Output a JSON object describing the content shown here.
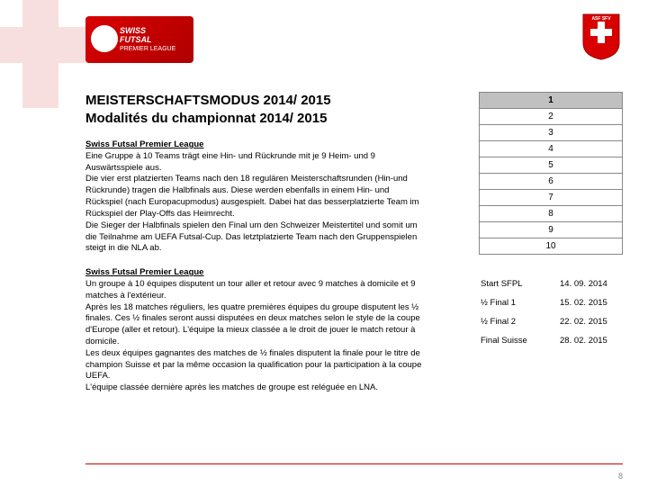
{
  "logo": {
    "line1": "SWISS",
    "line2": "FUTSAL",
    "sub": "PREMIER LEAGUE"
  },
  "title": {
    "de": "MEISTERSCHAFTSMODUS 2014/ 2015",
    "fr": "Modalités du championnat 2014/ 2015"
  },
  "section_de": {
    "heading": "Swiss Futsal Premier League",
    "p1": "Eine Gruppe à 10 Teams trägt eine Hin- und Rückrunde mit je 9 Heim- und 9 Auswärtsspiele aus.",
    "p2": "Die vier erst platzierten Teams nach den 18 regulären Meisterschaftsrunden (Hin-und Rückrunde) tragen die Halbfinals aus. Diese werden ebenfalls in einem Hin- und Rückspiel (nach Europacupmodus) ausgespielt. Dabei hat das besserplatzierte Team im Rückspiel der Play-Offs das Heimrecht.",
    "p3": "Die Sieger der Halbfinals spielen den Final um den Schweizer Meistertitel und somit um die Teilnahme am UEFA Futsal-Cup. Das letztplatzierte Team nach den Gruppenspielen steigt in die NLA ab."
  },
  "section_fr": {
    "heading": "Swiss Futsal Premier League",
    "p1": "Un groupe à 10 équipes disputent un tour aller et retour avec 9 matches à domicile et  9 matches à l'extérieur.",
    "p2": "Après les 18 matches réguliers, les quatre premières équipes du groupe disputent les ½ finales. Ces ½ finales seront aussi disputées en deux matches selon le style de la coupe d'Europe (aller et retour). L'équipe la mieux classée a le droit de jouer le match retour à domicile.",
    "p3": "Les deux équipes gagnantes des matches de ½ finales disputent la finale pour le titre de champion Suisse et par la même occasion la qualification pour la participation à la coupe UEFA.",
    "p4": "L'équipe classée dernière après les matches de groupe est reléguée en LNA."
  },
  "ranking": {
    "rows": [
      "1",
      "2",
      "3",
      "4",
      "5",
      "6",
      "7",
      "8",
      "9",
      "10"
    ],
    "active_index": 0
  },
  "dates": {
    "rows": [
      {
        "label": "Start SFPL",
        "value": "14. 09. 2014"
      },
      {
        "label": "½ Final 1",
        "value": "15. 02. 2015"
      },
      {
        "label": "½ Final 2",
        "value": "22. 02. 2015"
      },
      {
        "label": "Final Suisse",
        "value": "28. 02. 2015"
      }
    ]
  },
  "page_number": "8",
  "colors": {
    "brand_red": "#cc0000",
    "active_bg": "#c0c0c0",
    "border": "#888888"
  }
}
